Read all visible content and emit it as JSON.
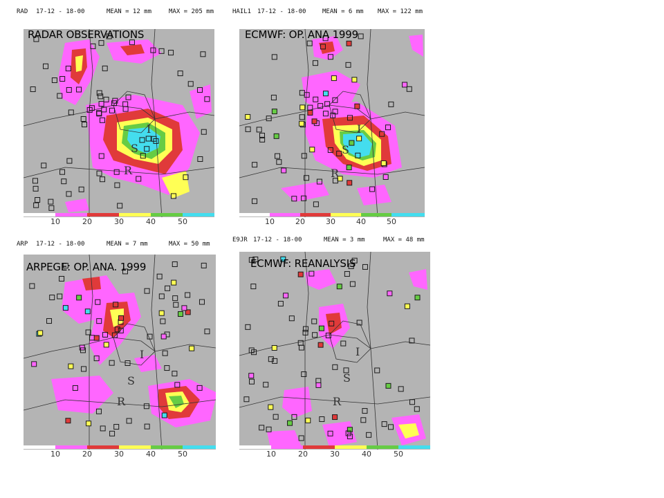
{
  "colors": {
    "background": "#b4b4b4",
    "levels": [
      "#ff66ff",
      "#e03a3a",
      "#ffff55",
      "#66cc44",
      "#44ddee"
    ]
  },
  "panels": [
    {
      "id": "radar",
      "header": {
        "name": "RAD",
        "period": "17-12 - 18-00",
        "mean": "MEAN =  12 mm",
        "max": "MAX = 205 mm"
      },
      "title": "RADAR OBSERVATIONS",
      "scale": [
        "10",
        "20",
        "30",
        "40",
        "50"
      ]
    },
    {
      "id": "ecmwf-op",
      "header": {
        "name": "HAIL1",
        "period": "17-12 - 18-00",
        "mean": "MEAN =   6 mm",
        "max": "MAX = 122 mm"
      },
      "title": "ECMWF: OP. ANA 1999",
      "scale": [
        "10",
        "20",
        "30",
        "40",
        "50"
      ]
    },
    {
      "id": "arpege",
      "header": {
        "name": "ARP",
        "period": "17-12 - 18-00",
        "mean": "MEAN =   7 mm",
        "max": "MAX =  50 mm"
      },
      "title": "ARPEGE: OP. ANA. 1999",
      "scale": [
        "10",
        "20",
        "30",
        "40",
        "50"
      ]
    },
    {
      "id": "ecmwf-re",
      "header": {
        "name": "E9JR",
        "period": "17-12 - 18-00",
        "mean": "MEAN =   3 mm",
        "max": "MAX =  48 mm"
      },
      "title": "ECMWF: REANALYSIS",
      "scale": [
        "10",
        "20",
        "30",
        "40",
        "50"
      ]
    }
  ],
  "map_labels": [
    "I",
    "S",
    "R"
  ]
}
